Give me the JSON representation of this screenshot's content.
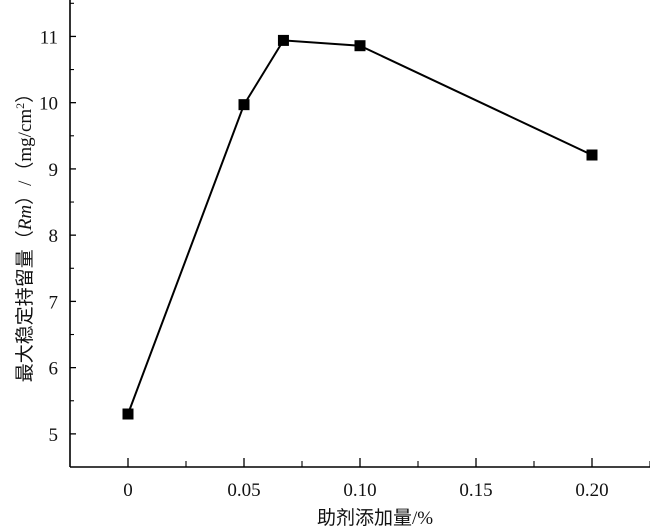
{
  "chart_data": {
    "type": "line",
    "title": "",
    "xlabel": "助剂添加量/%",
    "ylabel_parts": [
      "最大稳定持留量（",
      "Rm",
      "）/（mg/cm",
      "2",
      "）"
    ],
    "x": [
      0,
      0.05,
      0.067,
      0.1,
      0.2
    ],
    "series": [
      {
        "values": [
          5.3,
          9.97,
          10.94,
          10.86,
          9.21
        ],
        "marker": "square",
        "color": "#000000"
      }
    ],
    "xlim": [
      -0.025,
      0.225
    ],
    "ylim": [
      4.5,
      11.55
    ],
    "xticks": [
      0,
      0.05,
      0.1,
      0.15,
      0.2
    ],
    "xtick_labels": [
      "0",
      "0.05",
      "0.10",
      "0.15",
      "0.20"
    ],
    "yticks": [
      5,
      6,
      7,
      8,
      9,
      10,
      11
    ],
    "ytick_labels": [
      "5",
      "6",
      "7",
      "8",
      "9",
      "10",
      "11"
    ],
    "grid": false,
    "legend": "none"
  }
}
